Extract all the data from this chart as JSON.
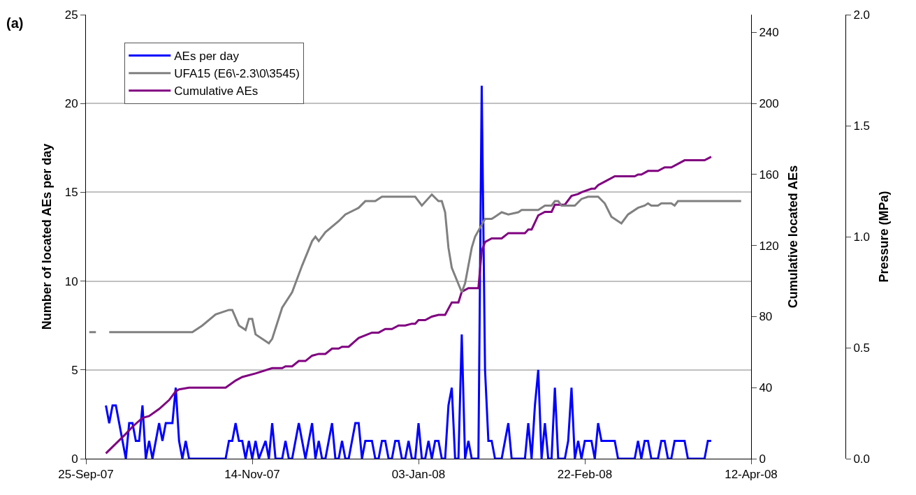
{
  "chart_data": {
    "type": "line",
    "annotations": [
      "(a)"
    ],
    "ylabel": "Number of located AEs per day",
    "y2label": "Cumulative located AEs",
    "y3label": "Pressure (MPa)",
    "xlim": [
      "2007-09-25",
      "2008-04-12"
    ],
    "xticks": [
      {
        "value": "2007-09-25",
        "label": "25-Sep-07"
      },
      {
        "value": "2007-11-14",
        "label": "14-Nov-07"
      },
      {
        "value": "2008-01-03",
        "label": "03-Jan-08"
      },
      {
        "value": "2008-02-22",
        "label": "22-Feb-08"
      },
      {
        "value": "2008-04-12",
        "label": "12-Apr-08"
      }
    ],
    "ylim": [
      0,
      25
    ],
    "yticks": [
      0,
      5,
      10,
      15,
      20,
      25
    ],
    "y2lim": [
      0,
      250
    ],
    "y2ticks": [
      0,
      40,
      80,
      120,
      160,
      200,
      240
    ],
    "y3lim": [
      0,
      2.0
    ],
    "y3ticks": [
      {
        "value": 0,
        "label": "0.0"
      },
      {
        "value": 0.5,
        "label": "0.5"
      },
      {
        "value": 1.0,
        "label": "1.0"
      },
      {
        "value": 1.5,
        "label": "1.5"
      },
      {
        "value": 2.0,
        "label": "2.0"
      }
    ],
    "grid": "y",
    "legend": "top left",
    "marker": "none",
    "line_style": "solid",
    "series": [
      {
        "name": "AEs per day",
        "color": "#0000ff",
        "x": [
          "2007-10-01",
          "2007-10-02",
          "2007-10-03",
          "2007-10-04",
          "2007-10-07",
          "2007-10-08",
          "2007-10-09",
          "2007-10-10",
          "2007-10-11",
          "2007-10-12",
          "2007-10-13",
          "2007-10-14",
          "2007-10-15",
          "2007-10-17",
          "2007-10-18",
          "2007-10-19",
          "2007-10-21",
          "2007-10-22",
          "2007-10-23",
          "2007-10-24",
          "2007-10-25",
          "2007-10-26",
          "2007-11-06",
          "2007-11-07",
          "2007-11-08",
          "2007-11-09",
          "2007-11-10",
          "2007-11-11",
          "2007-11-12",
          "2007-11-13",
          "2007-11-14",
          "2007-11-15",
          "2007-11-16",
          "2007-11-18",
          "2007-11-19",
          "2007-11-20",
          "2007-11-21",
          "2007-11-23",
          "2007-11-24",
          "2007-11-25",
          "2007-11-26",
          "2007-11-28",
          "2007-11-30",
          "2007-12-02",
          "2007-12-03",
          "2007-12-04",
          "2007-12-05",
          "2007-12-06",
          "2007-12-08",
          "2007-12-09",
          "2007-12-10",
          "2007-12-11",
          "2007-12-12",
          "2007-12-13",
          "2007-12-15",
          "2007-12-16",
          "2007-12-17",
          "2007-12-18",
          "2007-12-20",
          "2007-12-21",
          "2007-12-22",
          "2007-12-23",
          "2007-12-24",
          "2007-12-25",
          "2007-12-26",
          "2007-12-27",
          "2007-12-28",
          "2007-12-29",
          "2007-12-30",
          "2007-12-31",
          "2008-01-01",
          "2008-01-02",
          "2008-01-03",
          "2008-01-04",
          "2008-01-05",
          "2008-01-06",
          "2008-01-07",
          "2008-01-08",
          "2008-01-09",
          "2008-01-10",
          "2008-01-11",
          "2008-01-12",
          "2008-01-13",
          "2008-01-14",
          "2008-01-15",
          "2008-01-16",
          "2008-01-17",
          "2008-01-18",
          "2008-01-19",
          "2008-01-21",
          "2008-01-22",
          "2008-01-23",
          "2008-01-24",
          "2008-01-25",
          "2008-01-26",
          "2008-01-28",
          "2008-01-30",
          "2008-01-31",
          "2008-02-04",
          "2008-02-05",
          "2008-02-06",
          "2008-02-07",
          "2008-02-08",
          "2008-02-09",
          "2008-02-10",
          "2008-02-11",
          "2008-02-12",
          "2008-02-13",
          "2008-02-14",
          "2008-02-16",
          "2008-02-17",
          "2008-02-18",
          "2008-02-19",
          "2008-02-20",
          "2008-02-21",
          "2008-02-22",
          "2008-02-24",
          "2008-02-25",
          "2008-02-26",
          "2008-02-27",
          "2008-03-02",
          "2008-03-03",
          "2008-03-08",
          "2008-03-09",
          "2008-03-10",
          "2008-03-11",
          "2008-03-12",
          "2008-03-13",
          "2008-03-15",
          "2008-03-16",
          "2008-03-17",
          "2008-03-18",
          "2008-03-19",
          "2008-03-20",
          "2008-03-23",
          "2008-03-24",
          "2008-03-29",
          "2008-03-30",
          "2008-03-31"
        ],
        "values": [
          3,
          2,
          3,
          3,
          0,
          2,
          2,
          1,
          1,
          3,
          0,
          1,
          0,
          2,
          1,
          2,
          2,
          4,
          1,
          0,
          1,
          0,
          0,
          1,
          1,
          2,
          1,
          1,
          0,
          1,
          0,
          1,
          0,
          1,
          0,
          2,
          0,
          0,
          1,
          0,
          0,
          2,
          0,
          2,
          0,
          1,
          0,
          0,
          2,
          0,
          0,
          1,
          0,
          0,
          2,
          2,
          0,
          1,
          1,
          0,
          0,
          1,
          1,
          0,
          0,
          1,
          1,
          0,
          0,
          1,
          0,
          0,
          2,
          0,
          0,
          1,
          0,
          1,
          1,
          0,
          0,
          3,
          4,
          0,
          0,
          7,
          0,
          1,
          0,
          0,
          21,
          5,
          1,
          1,
          0,
          0,
          2,
          0,
          0,
          2,
          0,
          3,
          5,
          0,
          2,
          0,
          0,
          4,
          0,
          0,
          1,
          4,
          0,
          1,
          0,
          1,
          1,
          0,
          2,
          1,
          1,
          0,
          0,
          1,
          0,
          1,
          1,
          0,
          0,
          1,
          1,
          0,
          0,
          1,
          1,
          0,
          0,
          1,
          1
        ]
      },
      {
        "name": "UFA15 (E6\\-2.3\\0\\3545)",
        "color": "#808080",
        "axis": "y3",
        "x": [
          "2007-09-26",
          "2007-09-28",
          "2007-09-30",
          "2007-10-02",
          "2007-10-27",
          "2007-10-30",
          "2007-11-03",
          "2007-11-05",
          "2007-11-07",
          "2007-11-08",
          "2007-11-10",
          "2007-11-12",
          "2007-11-13",
          "2007-11-14",
          "2007-11-15",
          "2007-11-18",
          "2007-11-19",
          "2007-11-20",
          "2007-11-23",
          "2007-11-26",
          "2007-11-29",
          "2007-12-02",
          "2007-12-03",
          "2007-12-04",
          "2007-12-06",
          "2007-12-10",
          "2007-12-12",
          "2007-12-16",
          "2007-12-18",
          "2007-12-21",
          "2007-12-23",
          "2008-01-02",
          "2008-01-04",
          "2008-01-07",
          "2008-01-09",
          "2008-01-10",
          "2008-01-11",
          "2008-01-12",
          "2008-01-13",
          "2008-01-16",
          "2008-01-17",
          "2008-01-19",
          "2008-01-20",
          "2008-01-23",
          "2008-01-25",
          "2008-01-26",
          "2008-01-28",
          "2008-01-30",
          "2008-02-02",
          "2008-02-03",
          "2008-02-08",
          "2008-02-10",
          "2008-02-12",
          "2008-02-13",
          "2008-02-14",
          "2008-02-15",
          "2008-02-19",
          "2008-02-21",
          "2008-02-23",
          "2008-02-26",
          "2008-02-28",
          "2008-03-01",
          "2008-03-04",
          "2008-03-06",
          "2008-03-09",
          "2008-03-11",
          "2008-03-12",
          "2008-03-13",
          "2008-03-15",
          "2008-03-16",
          "2008-03-19",
          "2008-03-20",
          "2008-03-21",
          "2008-04-09"
        ],
        "values": [
          0.57,
          0.57,
          null,
          0.57,
          0.57,
          0.6,
          0.65,
          0.66,
          0.67,
          0.67,
          0.6,
          0.58,
          0.63,
          0.63,
          0.56,
          0.53,
          0.52,
          0.54,
          0.68,
          0.75,
          0.87,
          0.98,
          1.0,
          0.98,
          1.02,
          1.07,
          1.1,
          1.13,
          1.16,
          1.16,
          1.18,
          1.18,
          1.14,
          1.19,
          1.16,
          1.16,
          1.11,
          0.95,
          0.86,
          0.75,
          0.79,
          0.95,
          1.0,
          1.08,
          1.08,
          1.09,
          1.11,
          1.1,
          1.11,
          1.12,
          1.12,
          1.14,
          1.14,
          1.16,
          1.16,
          1.14,
          1.14,
          1.17,
          1.18,
          1.18,
          1.15,
          1.09,
          1.06,
          1.1,
          1.13,
          1.14,
          1.15,
          1.14,
          1.14,
          1.15,
          1.15,
          1.14,
          1.16,
          1.16
        ]
      },
      {
        "name": "Cumulative AEs",
        "color": "#800080",
        "axis": "y2",
        "x": [
          "2007-10-01",
          "2007-10-07",
          "2007-10-09",
          "2007-10-12",
          "2007-10-14",
          "2007-10-17",
          "2007-10-20",
          "2007-10-22",
          "2007-10-23",
          "2007-10-26",
          "2007-11-06",
          "2007-11-09",
          "2007-11-11",
          "2007-11-15",
          "2007-11-20",
          "2007-11-23",
          "2007-11-24",
          "2007-11-26",
          "2007-11-28",
          "2007-11-30",
          "2007-12-02",
          "2007-12-04",
          "2007-12-06",
          "2007-12-08",
          "2007-12-10",
          "2007-12-11",
          "2007-12-13",
          "2007-12-16",
          "2007-12-20",
          "2007-12-22",
          "2007-12-24",
          "2007-12-26",
          "2007-12-28",
          "2007-12-30",
          "2008-01-01",
          "2008-01-02",
          "2008-01-03",
          "2008-01-05",
          "2008-01-07",
          "2008-01-09",
          "2008-01-11",
          "2008-01-13",
          "2008-01-15",
          "2008-01-16",
          "2008-01-18",
          "2008-01-21",
          "2008-01-22",
          "2008-01-23",
          "2008-01-25",
          "2008-01-28",
          "2008-01-30",
          "2008-02-04",
          "2008-02-05",
          "2008-02-06",
          "2008-02-08",
          "2008-02-10",
          "2008-02-12",
          "2008-02-13",
          "2008-02-16",
          "2008-02-18",
          "2008-02-20",
          "2008-02-21",
          "2008-02-24",
          "2008-02-25",
          "2008-02-26",
          "2008-02-28",
          "2008-03-02",
          "2008-03-08",
          "2008-03-09",
          "2008-03-10",
          "2008-03-12",
          "2008-03-15",
          "2008-03-17",
          "2008-03-19",
          "2008-03-23",
          "2008-03-29",
          "2008-03-31"
        ],
        "values": [
          3,
          14,
          18,
          23,
          24,
          28,
          33,
          38,
          39,
          40,
          40,
          44,
          46,
          48,
          51,
          51,
          52,
          52,
          55,
          55,
          58,
          59,
          59,
          62,
          62,
          63,
          63,
          68,
          71,
          71,
          73,
          73,
          75,
          75,
          76,
          76,
          78,
          78,
          80,
          81,
          81,
          88,
          88,
          94,
          96,
          96,
          117,
          122,
          124,
          124,
          127,
          127,
          129,
          129,
          137,
          139,
          139,
          143,
          143,
          148,
          149,
          150,
          152,
          152,
          154,
          156,
          159,
          159,
          160,
          160,
          162,
          162,
          164,
          164,
          168,
          168,
          170
        ]
      }
    ]
  }
}
